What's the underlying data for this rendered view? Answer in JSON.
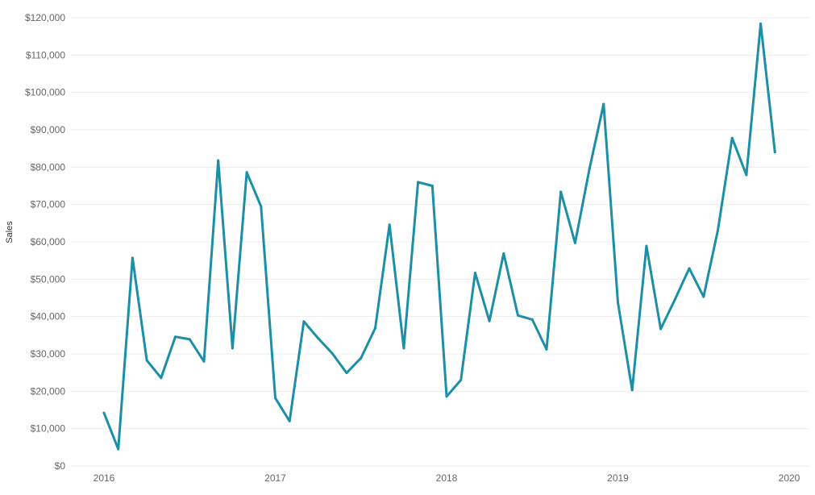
{
  "chart_data": {
    "type": "line",
    "title": "",
    "xlabel": "",
    "ylabel": "Sales",
    "ylim": [
      0,
      120000
    ],
    "y_ticks": [
      0,
      10000,
      20000,
      30000,
      40000,
      50000,
      60000,
      70000,
      80000,
      90000,
      100000,
      110000,
      120000
    ],
    "y_tick_labels": [
      "$0",
      "$10,000",
      "$20,000",
      "$30,000",
      "$40,000",
      "$50,000",
      "$60,000",
      "$70,000",
      "$80,000",
      "$90,000",
      "$100,000",
      "$110,000",
      "$120,000"
    ],
    "x_tick_labels": [
      "2016",
      "2017",
      "2018",
      "2019",
      "2020"
    ],
    "grid": true,
    "color": "#1b8fa8",
    "x": [
      "2016-01",
      "2016-02",
      "2016-03",
      "2016-04",
      "2016-05",
      "2016-06",
      "2016-07",
      "2016-08",
      "2016-09",
      "2016-10",
      "2016-11",
      "2016-12",
      "2017-01",
      "2017-02",
      "2017-03",
      "2017-04",
      "2017-05",
      "2017-06",
      "2017-07",
      "2017-08",
      "2017-09",
      "2017-10",
      "2017-11",
      "2017-12",
      "2018-01",
      "2018-02",
      "2018-03",
      "2018-04",
      "2018-05",
      "2018-06",
      "2018-07",
      "2018-08",
      "2018-09",
      "2018-10",
      "2018-11",
      "2018-12",
      "2019-01",
      "2019-02",
      "2019-03",
      "2019-04",
      "2019-05",
      "2019-06",
      "2019-07",
      "2019-08",
      "2019-09",
      "2019-10",
      "2019-11",
      "2019-12"
    ],
    "series": [
      {
        "values": [
          14200,
          4500,
          55700,
          28300,
          23600,
          34600,
          33900,
          28000,
          81800,
          31500,
          78600,
          69500,
          18200,
          12000,
          38700,
          34200,
          30100,
          24900,
          28900,
          36900,
          64600,
          31500,
          76000,
          75000,
          18600,
          23000,
          51700,
          38800,
          56900,
          40300,
          39200,
          31200,
          73400,
          59700,
          79400,
          96900,
          43800,
          20300,
          58900,
          36700,
          44600,
          52900,
          45300,
          63100,
          87800,
          77900,
          118400,
          84000
        ]
      }
    ]
  }
}
